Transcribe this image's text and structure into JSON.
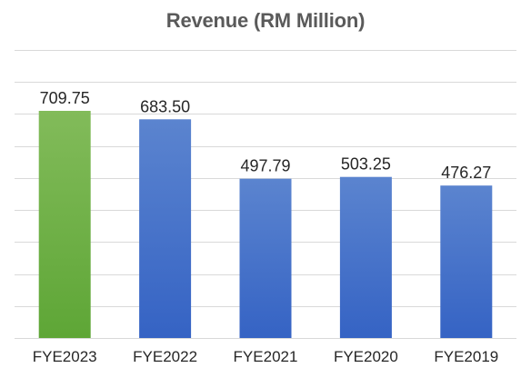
{
  "chart_data": {
    "type": "bar",
    "title": "Revenue (RM Million)",
    "categories": [
      "FYE2023",
      "FYE2022",
      "FYE2021",
      "FYE2020",
      "FYE2019"
    ],
    "values": [
      709.75,
      683.5,
      497.79,
      503.25,
      476.27
    ],
    "value_labels": [
      "709.75",
      "683.50",
      "497.79",
      "503.25",
      "476.27"
    ],
    "bar_colors": [
      "#70ad47",
      "#4472c4",
      "#4472c4",
      "#4472c4",
      "#4472c4"
    ],
    "ylim": [
      0,
      900
    ],
    "grid": true,
    "legend": "none",
    "xlabel": "",
    "ylabel": ""
  }
}
